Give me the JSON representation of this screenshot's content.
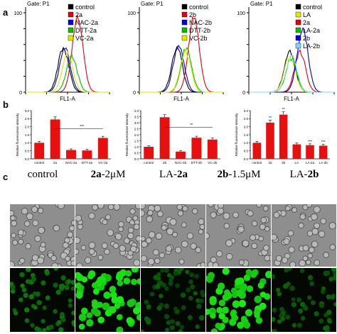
{
  "panel_labels": {
    "a": "a",
    "b": "b",
    "c": "c"
  },
  "panel_a": {
    "gate": "Gate: P1",
    "xlabel": "FL1-A",
    "y_ticks": [
      "0",
      "20",
      "40",
      "60",
      "80",
      "100"
    ],
    "plots": [
      {
        "legend": [
          "control",
          "2a",
          "NAC-2a",
          "DTT-2a",
          "VC-2a"
        ],
        "colors": [
          "#000000",
          "#e8000b",
          "#0000e0",
          "#00c000",
          "#e6e600"
        ]
      },
      {
        "legend": [
          "control",
          "2b",
          "NAC-2b",
          "DTT-2b",
          "VC-2b"
        ],
        "colors": [
          "#000000",
          "#e8000b",
          "#0000e0",
          "#00c000",
          "#e6e600"
        ]
      },
      {
        "legend": [
          "control",
          "LA",
          "2a",
          "LA-2a",
          "2b",
          "LA-2b"
        ],
        "colors": [
          "#000000",
          "#e6e600",
          "#e8000b",
          "#00c000",
          "#0000e0",
          "#7fd6ff"
        ]
      }
    ]
  },
  "chart_data": [
    {
      "type": "bar",
      "categories": [
        "control",
        "2a",
        "NAC-2a",
        "DTT-2a",
        "VC-2a"
      ],
      "values": [
        1.0,
        2.45,
        0.55,
        0.52,
        1.3
      ],
      "ylim": [
        0,
        3.0
      ],
      "yticks": [
        "0.0",
        "0.5",
        "1.0",
        "1.5",
        "2.0",
        "2.5",
        "3.0"
      ],
      "ylabel": "Relative fluorescence intensity",
      "significance": "***"
    },
    {
      "type": "bar",
      "categories": [
        "control",
        "2b",
        "NAC-2b",
        "DTT-2b",
        "VC-2b"
      ],
      "values": [
        1.0,
        3.45,
        0.6,
        1.75,
        1.6
      ],
      "ylim": [
        0,
        4.0
      ],
      "yticks": [
        "0.0",
        "0.5",
        "1.0",
        "1.5",
        "2.0",
        "2.5",
        "3.0",
        "3.5",
        "4.0"
      ],
      "ylabel": "Relative fluorescence intensity",
      "significance": "**"
    },
    {
      "type": "bar",
      "categories": [
        "control",
        "2a",
        "2b",
        "LA",
        "LA-2a",
        "LA-2b"
      ],
      "values": [
        1.0,
        2.25,
        2.75,
        0.9,
        0.85,
        0.82
      ],
      "ylim": [
        0,
        3.0
      ],
      "yticks": [
        "0.0",
        "0.5",
        "1.0",
        "1.5",
        "2.0",
        "2.5",
        "3.0"
      ],
      "ylabel": "Relative fluorescence intensity",
      "bar_annotations": [
        "",
        "**",
        "**",
        "",
        "***",
        "***"
      ]
    }
  ],
  "panel_c": {
    "columns": [
      {
        "pre": "",
        "bold": "",
        "post": "control"
      },
      {
        "pre": "",
        "bold": "2a",
        "post": "-2μM"
      },
      {
        "pre": "LA-",
        "bold": "2a",
        "post": ""
      },
      {
        "pre": "",
        "bold": "2b",
        "post": "-1.5μM"
      },
      {
        "pre": "LA-",
        "bold": "2b",
        "post": ""
      }
    ],
    "green_density": [
      0.35,
      0.9,
      0.15,
      0.85,
      0.2
    ]
  }
}
